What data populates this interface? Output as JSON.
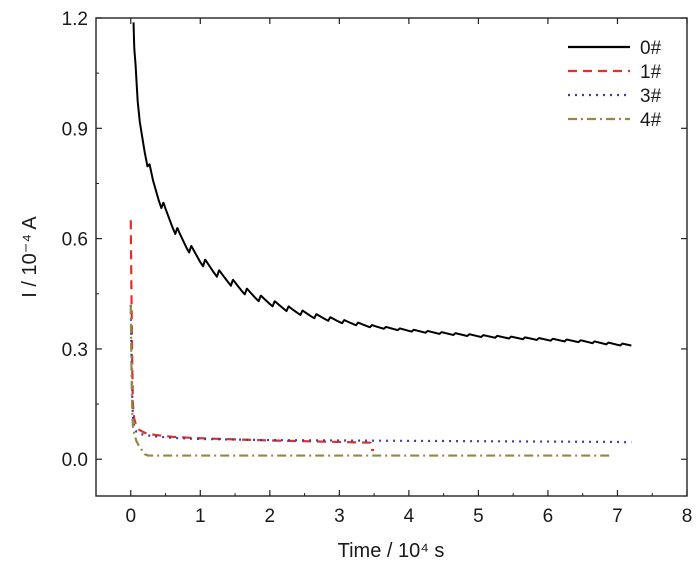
{
  "chart_data": {
    "type": "line",
    "xlabel": "Time / 10⁴ s",
    "ylabel": "I / 10⁻⁴ A",
    "xlim": [
      -0.5,
      8
    ],
    "ylim": [
      -0.1,
      1.2
    ],
    "xticks": [
      0,
      1,
      2,
      3,
      4,
      5,
      6,
      7,
      8
    ],
    "yticks": [
      0.0,
      0.3,
      0.6,
      0.9,
      1.2
    ],
    "xtick_labels": [
      "0",
      "1",
      "2",
      "3",
      "4",
      "5",
      "6",
      "7",
      "8"
    ],
    "ytick_labels": [
      "0.0",
      "0.3",
      "0.6",
      "0.9",
      "1.2"
    ],
    "grid": false,
    "legend_position": "top-right",
    "series": [
      {
        "name": "0#",
        "color": "#000000",
        "dash": "solid",
        "x": [
          0.04,
          0.05,
          0.08,
          0.1,
          0.13,
          0.16,
          0.2,
          0.25,
          0.32,
          0.4,
          0.5,
          0.6,
          0.7,
          0.8,
          0.9,
          1.0,
          1.2,
          1.4,
          1.6,
          1.8,
          2.0,
          2.3,
          2.6,
          3.0,
          3.5,
          4.0,
          4.5,
          5.0,
          5.5,
          6.0,
          6.5,
          7.0,
          7.2
        ],
        "y": [
          1.2,
          1.12,
          1.02,
          0.96,
          0.91,
          0.88,
          0.84,
          0.8,
          0.75,
          0.71,
          0.67,
          0.635,
          0.605,
          0.58,
          0.56,
          0.54,
          0.51,
          0.485,
          0.46,
          0.44,
          0.425,
          0.405,
          0.39,
          0.375,
          0.36,
          0.35,
          0.342,
          0.335,
          0.33,
          0.325,
          0.32,
          0.312,
          0.31
        ],
        "osc_amp": 0.03,
        "osc_period": 0.2
      },
      {
        "name": "1#",
        "color": "#e0302a",
        "dash": "9,6",
        "x": [
          0.0,
          0.01,
          0.02,
          0.03,
          0.05,
          0.08,
          0.12,
          0.2,
          0.35,
          0.6,
          1.0,
          1.5,
          2.0,
          2.5,
          3.0,
          3.45,
          3.47,
          3.5
        ],
        "y": [
          0.65,
          0.45,
          0.28,
          0.15,
          0.11,
          0.09,
          0.08,
          0.072,
          0.066,
          0.061,
          0.057,
          0.054,
          0.051,
          0.049,
          0.047,
          0.045,
          0.025,
          0.025
        ]
      },
      {
        "name": "3#",
        "color": "#3d3f9a",
        "dash": "2,5",
        "x": [
          0.0,
          0.01,
          0.02,
          0.03,
          0.05,
          0.08,
          0.15,
          0.3,
          0.6,
          1.0,
          2.0,
          3.0,
          4.0,
          5.0,
          6.0,
          7.0,
          7.2
        ],
        "y": [
          0.42,
          0.3,
          0.18,
          0.12,
          0.09,
          0.075,
          0.068,
          0.063,
          0.058,
          0.055,
          0.052,
          0.051,
          0.05,
          0.049,
          0.048,
          0.047,
          0.046
        ]
      },
      {
        "name": "4#",
        "color": "#8f8a46",
        "dash": "9,4,2,4",
        "x": [
          0.0,
          0.01,
          0.02,
          0.03,
          0.05,
          0.08,
          0.12,
          0.16,
          0.2,
          0.25,
          0.4,
          1.0,
          2.0,
          3.0,
          4.0,
          5.0,
          6.0,
          6.9
        ],
        "y": [
          0.42,
          0.25,
          0.14,
          0.09,
          0.07,
          0.05,
          0.035,
          0.025,
          0.014,
          0.01,
          0.01,
          0.01,
          0.01,
          0.01,
          0.01,
          0.01,
          0.01,
          0.01
        ]
      }
    ]
  }
}
